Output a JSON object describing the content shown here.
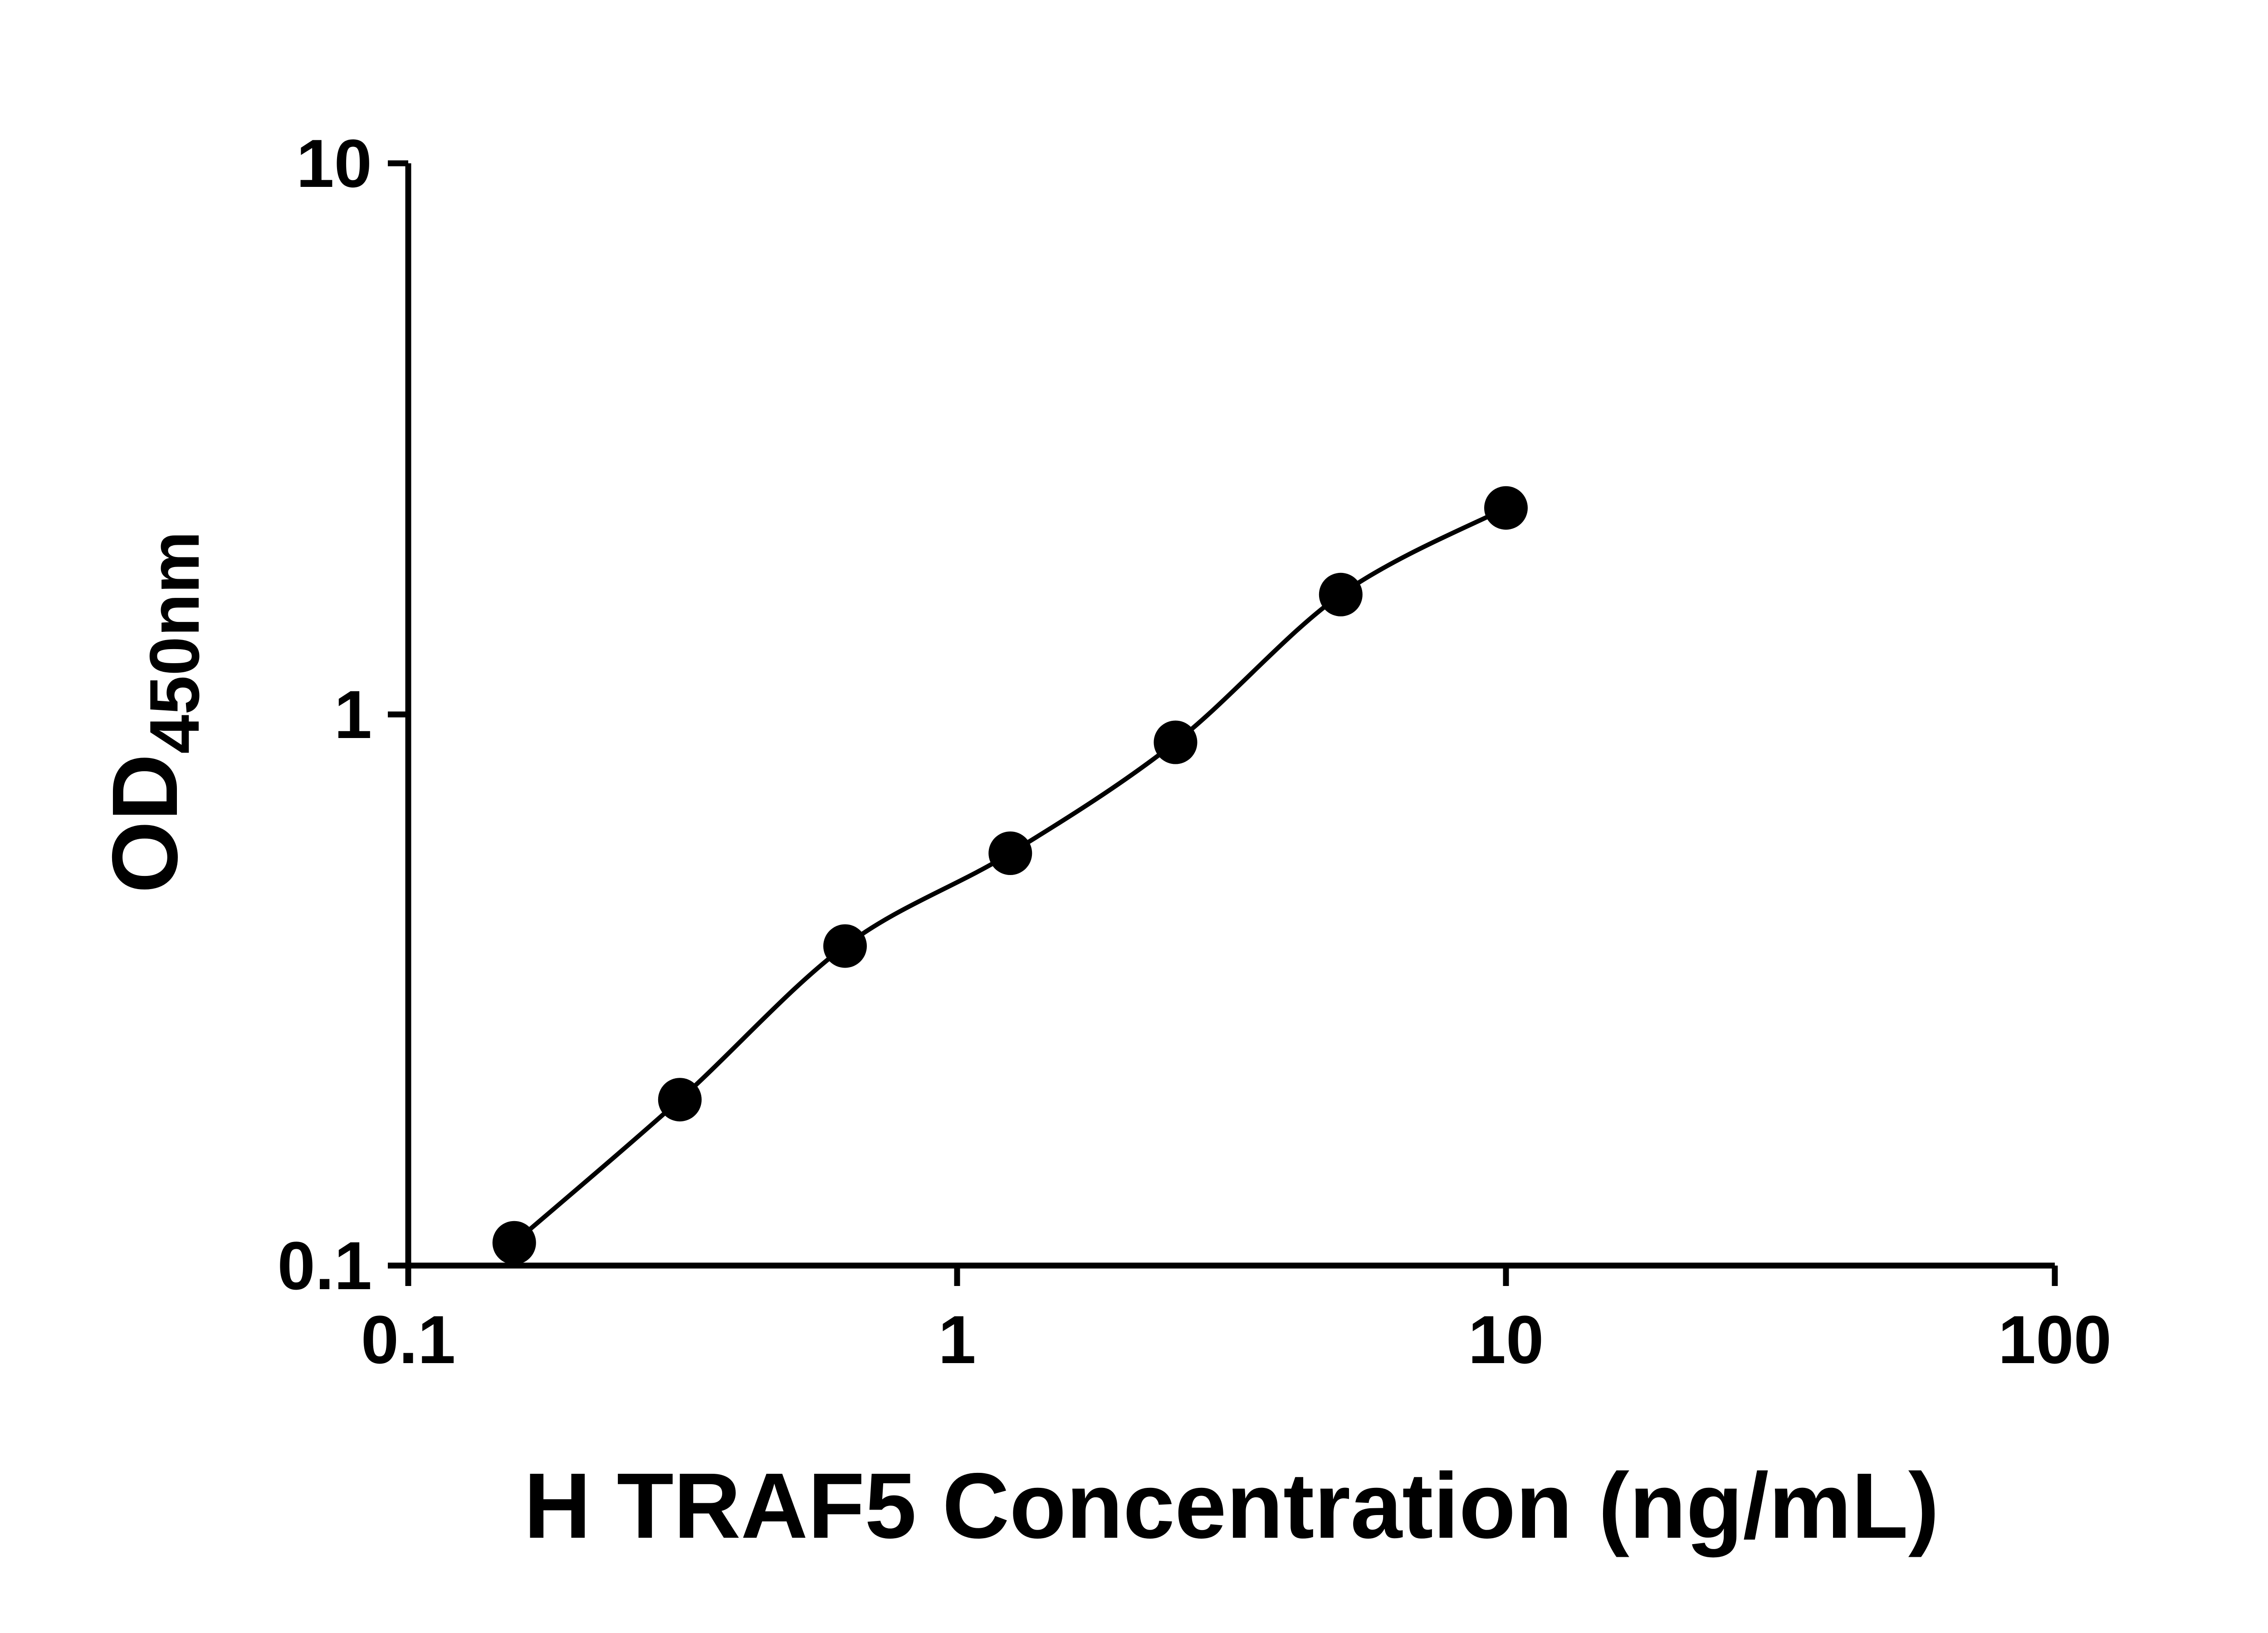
{
  "chart_data": {
    "type": "scatter",
    "subtype": "standard-curve-with-fit-line",
    "title": "",
    "xlabel": "H TRAF5 Concentration (ng/mL)",
    "ylabel": "OD450nm",
    "ylabel_main": "OD",
    "ylabel_sub": "450nm",
    "x_scale": "log10",
    "y_scale": "log10",
    "xlim": [
      0.1,
      100
    ],
    "ylim": [
      0.1,
      10
    ],
    "x_tick_values": [
      0.1,
      1,
      10,
      100
    ],
    "x_tick_labels": [
      "0.1",
      "1",
      "10",
      "100"
    ],
    "y_tick_values": [
      0.1,
      1,
      10
    ],
    "y_tick_labels": [
      "0.1",
      "1",
      "10"
    ],
    "grid": false,
    "legend": false,
    "axis_color": "#000000",
    "marker_color": "#000000",
    "line_color": "#000000",
    "points": [
      {
        "x": 0.156,
        "y": 0.11
      },
      {
        "x": 0.3125,
        "y": 0.2
      },
      {
        "x": 0.625,
        "y": 0.38
      },
      {
        "x": 1.25,
        "y": 0.56
      },
      {
        "x": 2.5,
        "y": 0.89
      },
      {
        "x": 5,
        "y": 1.65
      },
      {
        "x": 10,
        "y": 2.37
      }
    ]
  }
}
